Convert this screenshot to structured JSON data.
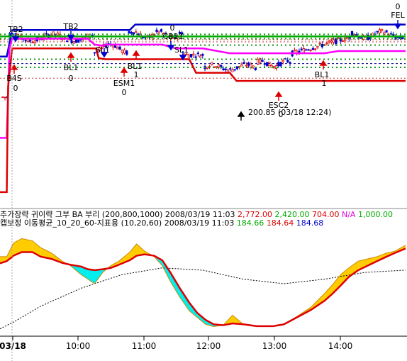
{
  "chart_data": [
    {
      "type": "line",
      "panel": "price",
      "series": [
        {
          "color": "#0000cc",
          "x": [
            0,
            5,
            9,
            15,
            30,
            96,
            100,
            137,
            140,
            200,
            287,
            300
          ],
          "y": [
            2775,
            2775,
            2824,
            2824,
            2824,
            2824,
            2834,
            2834,
            2834,
            2834,
            2834,
            2834
          ]
        },
        {
          "color": "#00aa00",
          "x": [
            0,
            300
          ],
          "y": [
            2812,
            2812
          ]
        },
        {
          "color": "#ff00ff",
          "x": [
            0,
            5,
            7,
            9,
            20,
            65,
            70,
            76,
            78,
            120,
            130,
            140,
            150,
            170,
            240,
            250,
            300
          ],
          "y": [
            2625,
            2625,
            2790,
            2808,
            2808,
            2808,
            2797,
            2795,
            2797,
            2797,
            2790,
            2790,
            2790,
            2781,
            2781,
            2785,
            2785
          ]
        },
        {
          "color": "#dd0000",
          "x": [
            0,
            5,
            6,
            9,
            30,
            71,
            73,
            78,
            93,
            140,
            145,
            170,
            175,
            300
          ],
          "y": [
            2525,
            2525,
            2720,
            2790,
            2790,
            2790,
            2772,
            2770,
            2770,
            2770,
            2745,
            2745,
            2730,
            2730
          ]
        },
        {
          "color": "#000088",
          "dash": true,
          "x": [
            0,
            300
          ],
          "y": [
            2762,
            2762
          ]
        }
      ],
      "annotations": [
        "TB2",
        "TB2",
        "B4S",
        "0",
        "BL1",
        "0",
        "SL1",
        "ESM1",
        "0",
        "BL1",
        "1",
        "0",
        "CB21",
        "SL1",
        "ESC2",
        "0",
        "BL1",
        "1",
        "0",
        "FEL",
        "200.85 (03/18 12:24)"
      ]
    },
    {
      "type": "line",
      "panel": "indicator",
      "header_line1": [
        {
          "text": "추가장략 귀이략 그부 BA 부리 (200,800,1000) 2008/03/19 11:03 ",
          "color": "#000000"
        },
        {
          "text": "2,772.00 ",
          "color": "#dd0000"
        },
        {
          "text": "2,420.00 ",
          "color": "#00aa00"
        },
        {
          "text": "704.00 ",
          "color": "#dd0000"
        },
        {
          "text": "N/A ",
          "color": "#dd00dd"
        },
        {
          "text": "1,000.00",
          "color": "#00aa00"
        }
      ],
      "header_line2": [
        {
          "text": "캡보정 이동평균_10_20_60-지표용 (10,20,60) 2008/03/19 11:03 ",
          "color": "#000000"
        },
        {
          "text": "184.66 ",
          "color": "#00aa00"
        },
        {
          "text": "184.64 ",
          "color": "#dd0000"
        },
        {
          "text": "184.68",
          "color": "#0000cc"
        }
      ],
      "series": [
        {
          "color": "#ff8800",
          "x": [
            0,
            5,
            10,
            16,
            24,
            30,
            38,
            46,
            52,
            60,
            65,
            70,
            76,
            82,
            88,
            96,
            101,
            107,
            114,
            120,
            126,
            133,
            140,
            146,
            152,
            158,
            165,
            172,
            180,
            190,
            196,
            202,
            210,
            220,
            230,
            240,
            246,
            252,
            258,
            265,
            272,
            279,
            286,
            292,
            300
          ],
          "y": [
            30,
            30,
            60,
            70,
            65,
            50,
            38,
            20,
            10,
            -10,
            -20,
            -30,
            -5,
            10,
            20,
            40,
            58,
            42,
            30,
            10,
            -25,
            -60,
            -90,
            -105,
            -120,
            -125,
            -122,
            -100,
            -120,
            -125,
            -125,
            -125,
            -120,
            -102,
            -82,
            -52,
            -32,
            -10,
            5,
            20,
            25,
            30,
            38,
            42,
            55
          ]
        },
        {
          "color": "#dd0000",
          "x": [
            0,
            5,
            10,
            16,
            24,
            30,
            38,
            46,
            52,
            60,
            65,
            70,
            76,
            82,
            88,
            96,
            101,
            107,
            114,
            120,
            126,
            133,
            140,
            146,
            152,
            158,
            165,
            172,
            180,
            190,
            196,
            202,
            210,
            220,
            230,
            240,
            246,
            252,
            258,
            265,
            272,
            279,
            286,
            292,
            300
          ],
          "y": [
            15,
            20,
            32,
            40,
            40,
            30,
            25,
            16,
            12,
            8,
            2,
            0,
            2,
            5,
            12,
            22,
            32,
            35,
            32,
            22,
            -5,
            -40,
            -72,
            -95,
            -110,
            -120,
            -122,
            -118,
            -120,
            -124,
            -124,
            -124,
            -120,
            -104,
            -88,
            -68,
            -52,
            -34,
            -15,
            0,
            10,
            20,
            30,
            38,
            48
          ]
        },
        {
          "color": "#000000",
          "dash": true,
          "x": [
            0,
            10,
            30,
            60,
            90,
            120,
            150,
            180,
            210,
            240,
            270,
            300
          ],
          "y": [
            -130,
            -115,
            -80,
            -40,
            -10,
            5,
            0,
            -20,
            -30,
            -20,
            -5,
            0
          ]
        }
      ],
      "fill_colors": {
        "above": "#ffcc00",
        "below": "#00eeee"
      },
      "x_tick_labels": [
        "03/18",
        "10:00",
        "11:00",
        "12:00",
        "13:00",
        "14:00"
      ]
    }
  ]
}
